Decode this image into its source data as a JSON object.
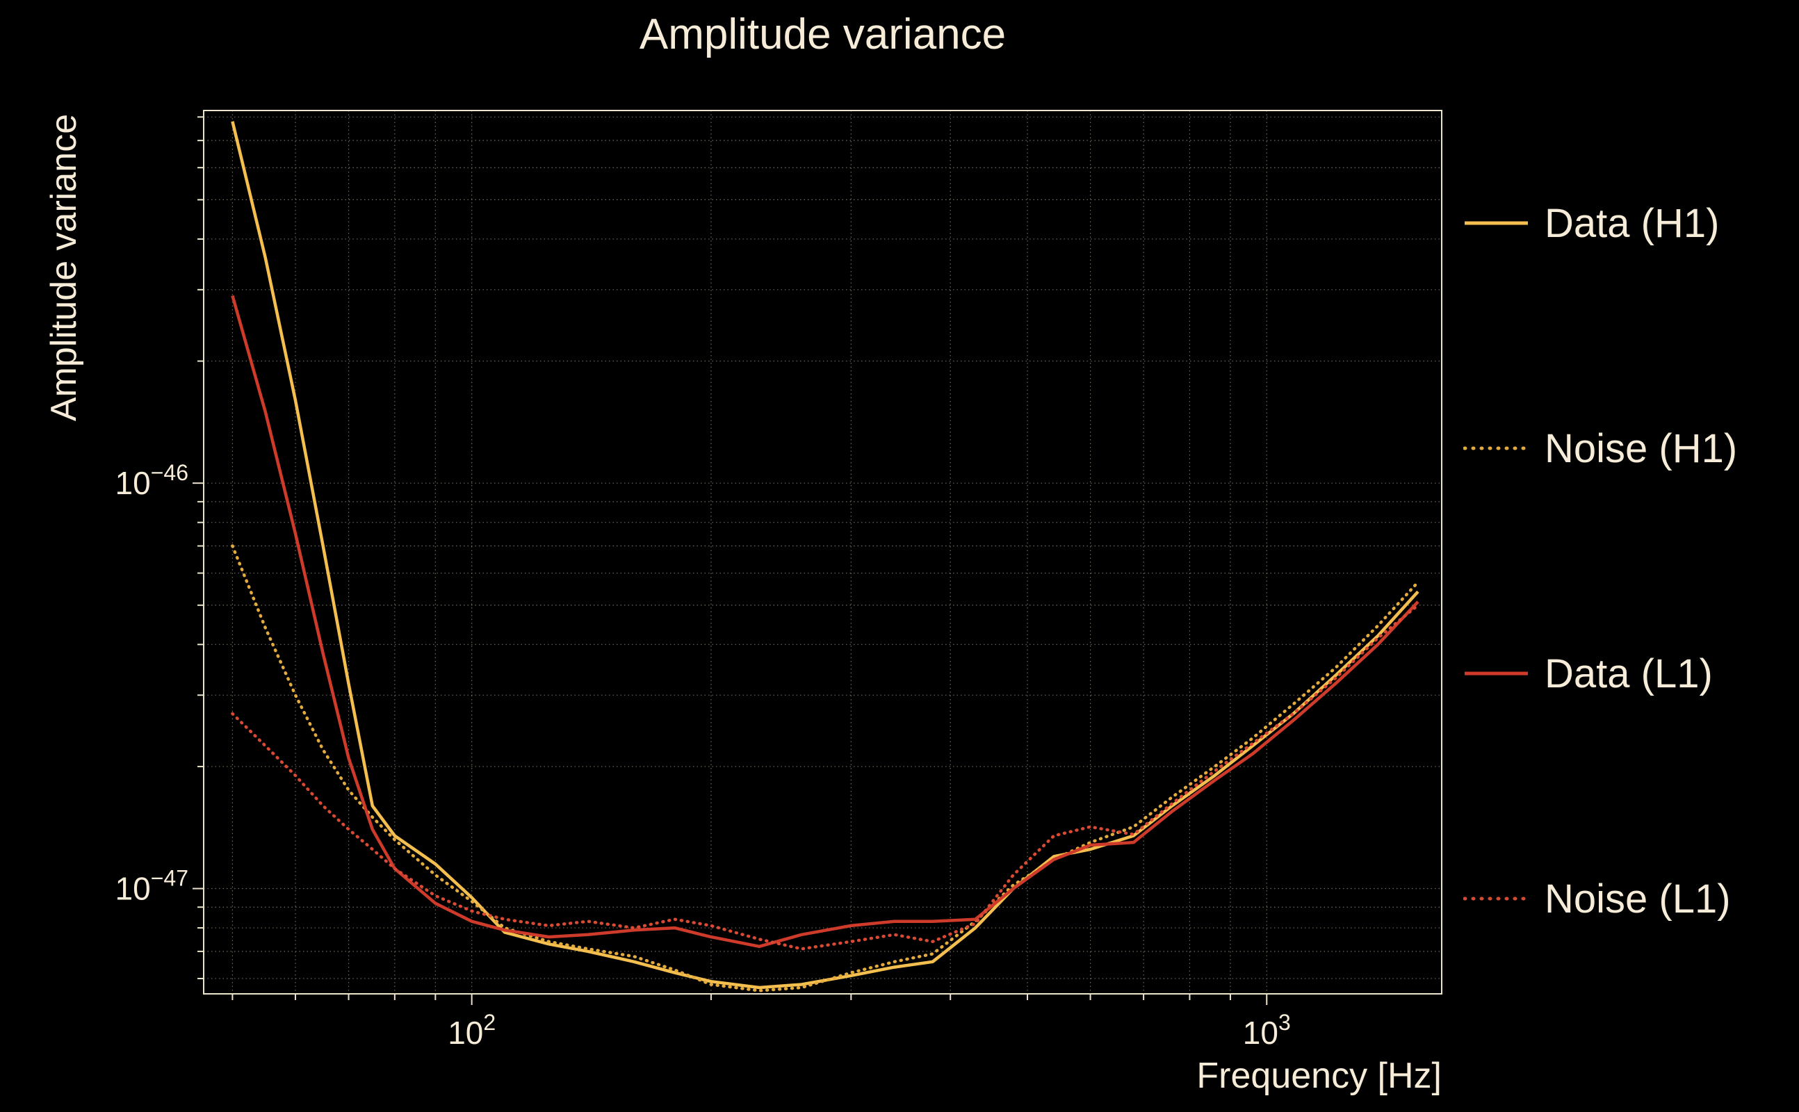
{
  "chart_data": {
    "type": "line",
    "title": "Amplitude variance",
    "xlabel": "Frequency [Hz]",
    "ylabel": "Amplitude variance",
    "x_scale": "log",
    "y_scale": "log",
    "xlim": [
      46,
      1660
    ],
    "ylim": [
      5.5e-48,
      8.3e-46
    ],
    "grid": true,
    "legend_position": "right",
    "background_color": "#000000",
    "text_color": "#f6ecd8",
    "grid_color": "#cfc5ab",
    "frame_color": "#ece3cc",
    "x": [
      50,
      55,
      60,
      65,
      70,
      75,
      80,
      90,
      100,
      110,
      125,
      140,
      160,
      180,
      200,
      230,
      260,
      300,
      340,
      380,
      430,
      480,
      540,
      600,
      680,
      760,
      860,
      960,
      1080,
      1220,
      1380,
      1550
    ],
    "series": [
      {
        "name": "Data (H1)",
        "color": "#f5bf4f",
        "style": "solid",
        "values": [
          7.8e-46,
          3.6e-46,
          1.6e-46,
          7e-47,
          3.2e-47,
          1.6e-47,
          1.35e-47,
          1.15e-47,
          9.5e-48,
          7.8e-48,
          7.3e-48,
          7e-48,
          6.6e-48,
          6.2e-48,
          5.9e-48,
          5.7e-48,
          5.8e-48,
          6.1e-48,
          6.4e-48,
          6.6e-48,
          8e-48,
          1e-47,
          1.2e-47,
          1.25e-47,
          1.35e-47,
          1.6e-47,
          1.9e-47,
          2.25e-47,
          2.7e-47,
          3.35e-47,
          4.2e-47,
          5.4e-47
        ]
      },
      {
        "name": "Noise (H1)",
        "color": "#e3ab3d",
        "style": "dotted",
        "values": [
          7e-47,
          4.4e-47,
          3e-47,
          2.2e-47,
          1.75e-47,
          1.5e-47,
          1.32e-47,
          1.08e-47,
          9.3e-48,
          8e-48,
          7.4e-48,
          7.1e-48,
          6.8e-48,
          6.3e-48,
          5.8e-48,
          5.6e-48,
          5.7e-48,
          6.2e-48,
          6.6e-48,
          6.9e-48,
          8.3e-48,
          1.02e-47,
          1.18e-47,
          1.3e-47,
          1.42e-47,
          1.68e-47,
          2e-47,
          2.35e-47,
          2.85e-47,
          3.5e-47,
          4.45e-47,
          5.7e-47
        ]
      },
      {
        "name": "Data (L1)",
        "color": "#cf3b2a",
        "style": "solid",
        "values": [
          2.9e-46,
          1.5e-46,
          7.5e-47,
          3.8e-47,
          2.1e-47,
          1.4e-47,
          1.12e-47,
          9.2e-48,
          8.3e-48,
          7.9e-48,
          7.6e-48,
          7.7e-48,
          7.9e-48,
          8e-48,
          7.6e-48,
          7.2e-48,
          7.7e-48,
          8.1e-48,
          8.3e-48,
          8.3e-48,
          8.4e-48,
          1e-47,
          1.18e-47,
          1.28e-47,
          1.3e-47,
          1.55e-47,
          1.85e-47,
          2.15e-47,
          2.6e-47,
          3.2e-47,
          4e-47,
          5.1e-47
        ]
      },
      {
        "name": "Noise (L1)",
        "color": "#d84a33",
        "style": "dotted",
        "values": [
          2.7e-47,
          2.25e-47,
          1.9e-47,
          1.6e-47,
          1.4e-47,
          1.25e-47,
          1.12e-47,
          9.6e-48,
          8.8e-48,
          8.4e-48,
          8.1e-48,
          8.3e-48,
          8e-48,
          8.4e-48,
          8.1e-48,
          7.5e-48,
          7.1e-48,
          7.4e-48,
          7.7e-48,
          7.4e-48,
          8.2e-48,
          1.08e-47,
          1.35e-47,
          1.42e-47,
          1.36e-47,
          1.62e-47,
          1.95e-47,
          2.28e-47,
          2.7e-47,
          3.3e-47,
          4.15e-47,
          5e-47
        ]
      }
    ],
    "x_tick_labels": [
      {
        "value": 100,
        "base": "10",
        "exp": "2"
      },
      {
        "value": 1000,
        "base": "10",
        "exp": "3"
      }
    ],
    "y_tick_labels": [
      {
        "value": 1e-46,
        "base": "10",
        "exp": "−46"
      },
      {
        "value": 1e-47,
        "base": "10",
        "exp": "−47"
      }
    ]
  }
}
